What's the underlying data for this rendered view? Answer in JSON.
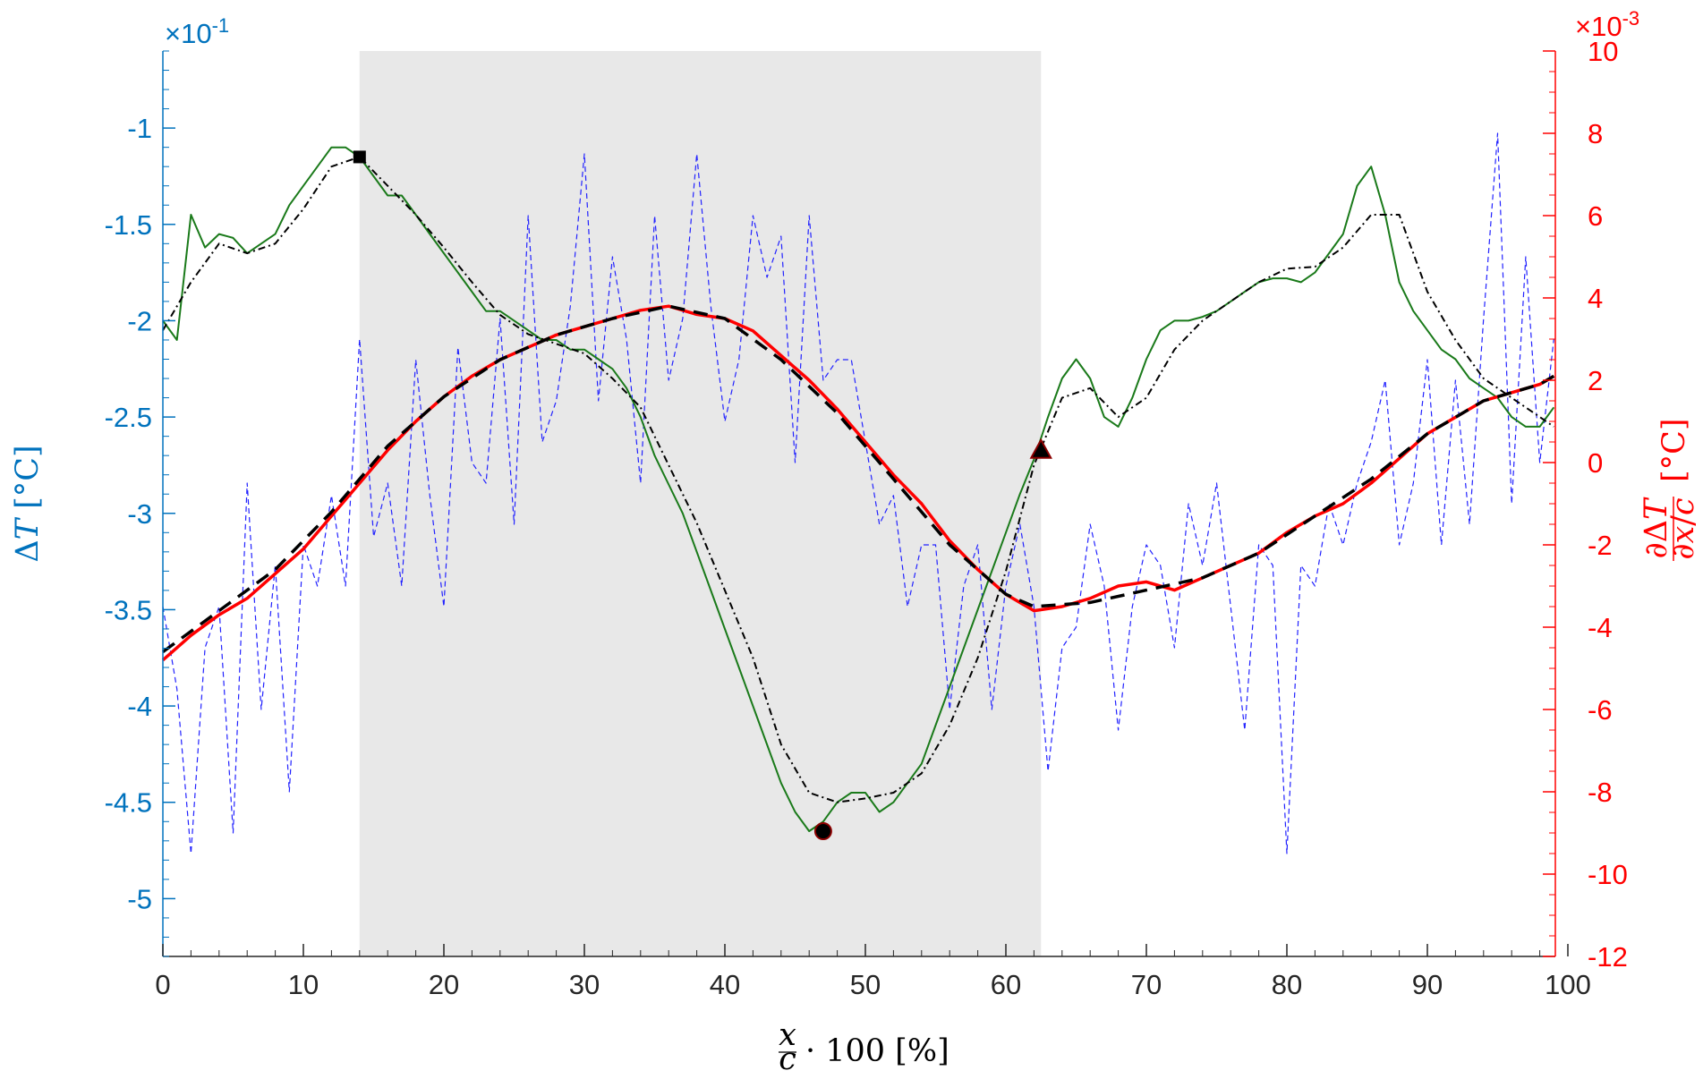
{
  "chart_data": {
    "type": "line",
    "xlabel": "x/c · 100 [%]",
    "ylabel_left": "ΔT [°C]",
    "ylabel_right": "∂ΔT/∂x/c [°C]",
    "xlim": [
      0,
      100
    ],
    "ylim_left": [
      -5.3,
      -0.6
    ],
    "ylim_right": [
      -12,
      10
    ],
    "left_axis_exponent": "×10^-1",
    "right_axis_exponent": "×10^-3",
    "x_ticks": [
      0,
      10,
      20,
      30,
      40,
      50,
      60,
      70,
      80,
      90,
      100
    ],
    "y_ticks_left": [
      -5,
      -4.5,
      -4,
      -3.5,
      -3,
      -2.5,
      -2,
      -1.5,
      -1
    ],
    "y_ticks_right": [
      -12,
      -10,
      -8,
      -6,
      -4,
      -2,
      0,
      2,
      4,
      6,
      8,
      10
    ],
    "shaded_region": [
      14,
      62.5
    ],
    "colors": {
      "left_axis": "#0072BD",
      "right_axis": "#FF0000",
      "raw_temperature": "#1A7A1A",
      "smoothed": "#000000",
      "raw_derivative": "#2222FF",
      "derivative_fit_red": "#FF0000",
      "derivative_fit_black": "#000000",
      "shade": "#E8E8E8"
    },
    "series": [
      {
        "name": "",
        "axis": "left",
        "style": "solid-green-noisy",
        "x": [
          0,
          1,
          2,
          3,
          4,
          5,
          6,
          7,
          8,
          9,
          10,
          11,
          12,
          13,
          14,
          15,
          16,
          17,
          18,
          19,
          20,
          21,
          22,
          23,
          24,
          25,
          26,
          27,
          28,
          29,
          30,
          31,
          32,
          33,
          34,
          35,
          36,
          37,
          38,
          39,
          40,
          41,
          42,
          43,
          44,
          45,
          46,
          47,
          48,
          49,
          50,
          51,
          52,
          53,
          54,
          55,
          56,
          57,
          58,
          59,
          60,
          61,
          62,
          63,
          64,
          65,
          66,
          67,
          68,
          69,
          70,
          71,
          72,
          73,
          74,
          75,
          76,
          77,
          78,
          79,
          80,
          81,
          82,
          83,
          84,
          85,
          86,
          87,
          88,
          89,
          90,
          91,
          92,
          93,
          94,
          95,
          96,
          97,
          98,
          99
        ],
        "y": [
          -2.0,
          -2.1,
          -1.45,
          -1.62,
          -1.55,
          -1.57,
          -1.65,
          -1.6,
          -1.55,
          -1.4,
          -1.3,
          -1.2,
          -1.1,
          -1.1,
          -1.15,
          -1.25,
          -1.35,
          -1.35,
          -1.45,
          -1.55,
          -1.65,
          -1.75,
          -1.85,
          -1.95,
          -1.95,
          -2.0,
          -2.05,
          -2.1,
          -2.1,
          -2.15,
          -2.15,
          -2.2,
          -2.25,
          -2.35,
          -2.5,
          -2.7,
          -2.85,
          -3.0,
          -3.2,
          -3.4,
          -3.6,
          -3.8,
          -4.0,
          -4.2,
          -4.4,
          -4.55,
          -4.65,
          -4.6,
          -4.5,
          -4.45,
          -4.45,
          -4.55,
          -4.5,
          -4.4,
          -4.3,
          -4.1,
          -3.9,
          -3.7,
          -3.5,
          -3.3,
          -3.1,
          -2.9,
          -2.72,
          -2.5,
          -2.3,
          -2.2,
          -2.3,
          -2.5,
          -2.55,
          -2.4,
          -2.2,
          -2.05,
          -2.0,
          -2.0,
          -1.98,
          -1.95,
          -1.9,
          -1.85,
          -1.8,
          -1.78,
          -1.78,
          -1.8,
          -1.75,
          -1.65,
          -1.55,
          -1.3,
          -1.2,
          -1.45,
          -1.8,
          -1.95,
          -2.05,
          -2.15,
          -2.2,
          -2.3,
          -2.35,
          -2.4,
          -2.5,
          -2.55,
          -2.55,
          -2.45
        ]
      },
      {
        "name": "",
        "axis": "left",
        "style": "dashdot-black-smooth",
        "x": [
          0,
          2,
          4,
          6,
          8,
          10,
          12,
          14,
          16,
          18,
          20,
          22,
          24,
          26,
          28,
          30,
          32,
          34,
          36,
          38,
          40,
          42,
          44,
          46,
          48,
          50,
          52,
          54,
          56,
          58,
          60,
          62,
          64,
          66,
          68,
          70,
          72,
          74,
          76,
          78,
          80,
          82,
          84,
          86,
          88,
          90,
          92,
          94,
          96,
          98,
          99
        ],
        "y": [
          -2.05,
          -1.8,
          -1.6,
          -1.65,
          -1.6,
          -1.42,
          -1.2,
          -1.15,
          -1.3,
          -1.45,
          -1.62,
          -1.8,
          -1.97,
          -2.07,
          -2.12,
          -2.17,
          -2.3,
          -2.45,
          -2.75,
          -3.05,
          -3.4,
          -3.75,
          -4.2,
          -4.45,
          -4.5,
          -4.48,
          -4.45,
          -4.35,
          -4.1,
          -3.75,
          -3.3,
          -2.75,
          -2.4,
          -2.35,
          -2.5,
          -2.4,
          -2.15,
          -2.0,
          -1.9,
          -1.8,
          -1.73,
          -1.72,
          -1.62,
          -1.45,
          -1.45,
          -1.85,
          -2.1,
          -2.3,
          -2.4,
          -2.5,
          -2.55
        ]
      },
      {
        "name": "",
        "axis": "right",
        "style": "dashed-blue-noisy",
        "x": [
          0,
          1,
          2,
          3,
          4,
          5,
          6,
          7,
          8,
          9,
          10,
          11,
          12,
          13,
          14,
          15,
          16,
          17,
          18,
          19,
          20,
          21,
          22,
          23,
          24,
          25,
          26,
          27,
          28,
          29,
          30,
          31,
          32,
          33,
          34,
          35,
          36,
          37,
          38,
          39,
          40,
          41,
          42,
          43,
          44,
          45,
          46,
          47,
          48,
          49,
          50,
          51,
          52,
          53,
          54,
          55,
          56,
          57,
          58,
          59,
          60,
          61,
          62,
          63,
          64,
          65,
          66,
          67,
          68,
          69,
          70,
          71,
          72,
          73,
          74,
          75,
          76,
          77,
          78,
          79,
          80,
          81,
          82,
          83,
          84,
          85,
          86,
          87,
          88,
          89,
          90,
          91,
          92,
          93,
          94,
          95,
          96,
          97,
          98,
          99
        ],
        "y": [
          -3.5,
          -5.5,
          -9.5,
          -4.5,
          -3.5,
          -9.0,
          -0.5,
          -6.0,
          -2.5,
          -8.0,
          -2.0,
          -3.0,
          -0.8,
          -3.0,
          3.0,
          -1.8,
          -0.5,
          -3.0,
          2.5,
          -0.8,
          -3.5,
          2.8,
          0.0,
          -0.5,
          3.5,
          -1.5,
          6.0,
          0.5,
          1.5,
          3.8,
          7.5,
          1.5,
          5.0,
          3.0,
          -0.5,
          6.0,
          2.0,
          3.5,
          7.5,
          3.8,
          1.0,
          2.5,
          6.0,
          4.5,
          5.5,
          0.0,
          6.0,
          2.0,
          2.5,
          2.5,
          0.5,
          -1.5,
          -0.8,
          -3.5,
          -2.0,
          -2.0,
          -6.0,
          -3.0,
          -2.0,
          -6.0,
          -3.0,
          -1.5,
          -3.5,
          -7.5,
          -4.5,
          -4.0,
          -1.5,
          -3.0,
          -6.5,
          -3.5,
          -2.0,
          -2.5,
          -4.5,
          -1.0,
          -2.5,
          -0.5,
          -3.5,
          -6.5,
          -2.0,
          -2.5,
          -9.5,
          -2.5,
          -3.0,
          -1.0,
          -2.0,
          -0.5,
          0.5,
          2.0,
          -2.0,
          -0.5,
          2.5,
          -2.0,
          2.0,
          -1.5,
          3.5,
          8.0,
          -1.0,
          5.0,
          0.0,
          3.0
        ]
      },
      {
        "name": "",
        "axis": "right",
        "style": "solid-red",
        "x": [
          0,
          2,
          4,
          6,
          8,
          10,
          12,
          14,
          16,
          18,
          20,
          22,
          24,
          26,
          28,
          30,
          32,
          34,
          36,
          38,
          40,
          42,
          44,
          46,
          48,
          50,
          52,
          54,
          56,
          58,
          60,
          62,
          64,
          66,
          68,
          70,
          72,
          74,
          76,
          78,
          80,
          82,
          84,
          86,
          88,
          90,
          92,
          94,
          96,
          98,
          99
        ],
        "y": [
          -4.8,
          -4.2,
          -3.7,
          -3.3,
          -2.7,
          -2.1,
          -1.3,
          -0.5,
          0.3,
          1.0,
          1.6,
          2.1,
          2.5,
          2.8,
          3.1,
          3.3,
          3.5,
          3.7,
          3.8,
          3.6,
          3.5,
          3.2,
          2.6,
          2.0,
          1.3,
          0.5,
          -0.3,
          -1.0,
          -1.9,
          -2.6,
          -3.2,
          -3.6,
          -3.5,
          -3.3,
          -3.0,
          -2.9,
          -3.1,
          -2.8,
          -2.5,
          -2.2,
          -1.7,
          -1.3,
          -1.0,
          -0.5,
          0.1,
          0.7,
          1.1,
          1.5,
          1.7,
          1.9,
          2.1
        ]
      },
      {
        "name": "",
        "axis": "right",
        "style": "dashed-black-thick",
        "x": [
          0,
          4,
          8,
          12,
          16,
          20,
          24,
          28,
          32,
          36,
          40,
          44,
          48,
          52,
          56,
          60,
          62,
          66,
          70,
          74,
          78,
          82,
          86,
          90,
          94,
          98,
          99
        ],
        "y": [
          -4.6,
          -3.6,
          -2.6,
          -1.2,
          0.4,
          1.6,
          2.5,
          3.1,
          3.5,
          3.8,
          3.5,
          2.5,
          1.2,
          -0.4,
          -2.0,
          -3.2,
          -3.5,
          -3.4,
          -3.1,
          -2.8,
          -2.2,
          -1.3,
          -0.4,
          0.7,
          1.5,
          1.9,
          2.1
        ]
      }
    ],
    "markers": [
      {
        "shape": "square",
        "axis": "left",
        "x": 14,
        "y": -1.15
      },
      {
        "shape": "circle",
        "axis": "left",
        "x": 47,
        "y": -4.65
      },
      {
        "shape": "triangle",
        "axis": "left",
        "x": 62.5,
        "y": -2.67
      }
    ]
  }
}
